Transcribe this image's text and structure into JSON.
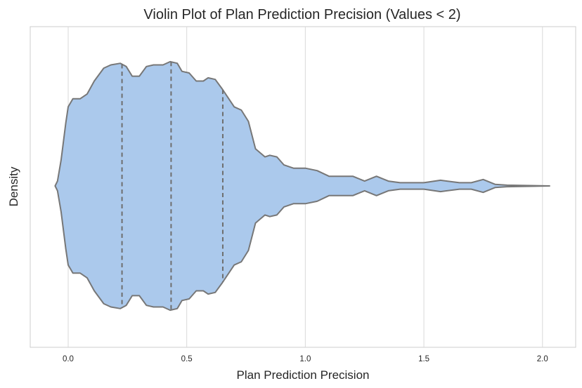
{
  "chart_data": {
    "type": "violin",
    "title": "Violin Plot of Plan Prediction Precision (Values < 2)",
    "xlabel": "Plan Prediction Precision",
    "ylabel": "Density",
    "xlim": [
      -0.16,
      2.14
    ],
    "xticks": [
      0.0,
      0.5,
      1.0,
      1.5,
      2.0
    ],
    "xtick_labels": [
      "0.0",
      "0.5",
      "1.0",
      "1.5",
      "2.0"
    ],
    "grid": "vertical",
    "colors": {
      "fill": "#abc9ec",
      "outline": "#777777",
      "grid": "#d9d9d9",
      "spine": "#cccccc"
    },
    "density_profile": {
      "x": [
        -0.055,
        -0.045,
        -0.03,
        -0.01,
        0.0,
        0.02,
        0.05,
        0.08,
        0.11,
        0.15,
        0.18,
        0.22,
        0.245,
        0.27,
        0.3,
        0.33,
        0.36,
        0.4,
        0.43,
        0.46,
        0.48,
        0.51,
        0.54,
        0.57,
        0.59,
        0.62,
        0.65,
        0.7,
        0.73,
        0.76,
        0.79,
        0.83,
        0.85,
        0.88,
        0.91,
        0.95,
        1.0,
        1.05,
        1.1,
        1.15,
        1.2,
        1.25,
        1.3,
        1.35,
        1.4,
        1.5,
        1.57,
        1.65,
        1.7,
        1.75,
        1.8,
        1.85,
        2.03
      ],
      "half_width": [
        0.0,
        0.03,
        0.16,
        0.39,
        0.49,
        0.54,
        0.54,
        0.57,
        0.65,
        0.73,
        0.75,
        0.76,
        0.74,
        0.68,
        0.68,
        0.74,
        0.75,
        0.75,
        0.77,
        0.76,
        0.71,
        0.7,
        0.65,
        0.65,
        0.67,
        0.66,
        0.6,
        0.49,
        0.47,
        0.4,
        0.23,
        0.18,
        0.19,
        0.18,
        0.13,
        0.11,
        0.11,
        0.095,
        0.06,
        0.06,
        0.06,
        0.03,
        0.06,
        0.03,
        0.02,
        0.02,
        0.035,
        0.02,
        0.02,
        0.04,
        0.01,
        0.005,
        0.0
      ]
    },
    "quartiles": [
      0.227,
      0.434,
      0.652
    ]
  }
}
